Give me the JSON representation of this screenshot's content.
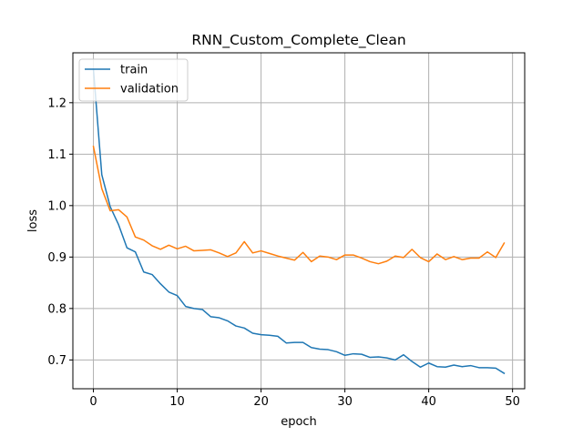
{
  "chart_data": {
    "type": "line",
    "title": "RNN_Custom_Complete_Clean",
    "xlabel": "epoch",
    "ylabel": "loss",
    "xlim": [
      -2.45,
      51.45
    ],
    "ylim": [
      0.644,
      1.297
    ],
    "xticks": [
      0,
      10,
      20,
      30,
      40,
      50
    ],
    "yticks": [
      0.7,
      0.8,
      0.9,
      1.0,
      1.1,
      1.2
    ],
    "ytick_labels": [
      "0.7",
      "0.8",
      "0.9",
      "1.0",
      "1.1",
      "1.2"
    ],
    "grid": true,
    "legend_position": "upper left",
    "x": [
      0,
      1,
      2,
      3,
      4,
      5,
      6,
      7,
      8,
      9,
      10,
      11,
      12,
      13,
      14,
      15,
      16,
      17,
      18,
      19,
      20,
      21,
      22,
      23,
      24,
      25,
      26,
      27,
      28,
      29,
      30,
      31,
      32,
      33,
      34,
      35,
      36,
      37,
      38,
      39,
      40,
      41,
      42,
      43,
      44,
      45,
      46,
      47,
      48,
      49
    ],
    "series": [
      {
        "name": "train",
        "color": "#1f77b4",
        "values": [
          1.265,
          1.06,
          0.998,
          0.963,
          0.918,
          0.91,
          0.871,
          0.866,
          0.848,
          0.832,
          0.825,
          0.804,
          0.8,
          0.798,
          0.784,
          0.782,
          0.776,
          0.766,
          0.762,
          0.752,
          0.749,
          0.748,
          0.746,
          0.733,
          0.734,
          0.734,
          0.724,
          0.721,
          0.72,
          0.716,
          0.709,
          0.712,
          0.711,
          0.705,
          0.706,
          0.704,
          0.7,
          0.71,
          0.697,
          0.686,
          0.694,
          0.687,
          0.686,
          0.69,
          0.687,
          0.689,
          0.685,
          0.685,
          0.684,
          0.674
        ]
      },
      {
        "name": "validation",
        "color": "#ff7f0e",
        "values": [
          1.115,
          1.033,
          0.99,
          0.992,
          0.978,
          0.939,
          0.933,
          0.922,
          0.915,
          0.923,
          0.916,
          0.921,
          0.912,
          0.913,
          0.914,
          0.908,
          0.901,
          0.908,
          0.93,
          0.908,
          0.912,
          0.907,
          0.902,
          0.898,
          0.894,
          0.909,
          0.891,
          0.902,
          0.9,
          0.895,
          0.904,
          0.904,
          0.898,
          0.891,
          0.887,
          0.892,
          0.902,
          0.899,
          0.915,
          0.899,
          0.891,
          0.906,
          0.895,
          0.901,
          0.895,
          0.898,
          0.898,
          0.91,
          0.899,
          0.927
        ]
      }
    ]
  }
}
